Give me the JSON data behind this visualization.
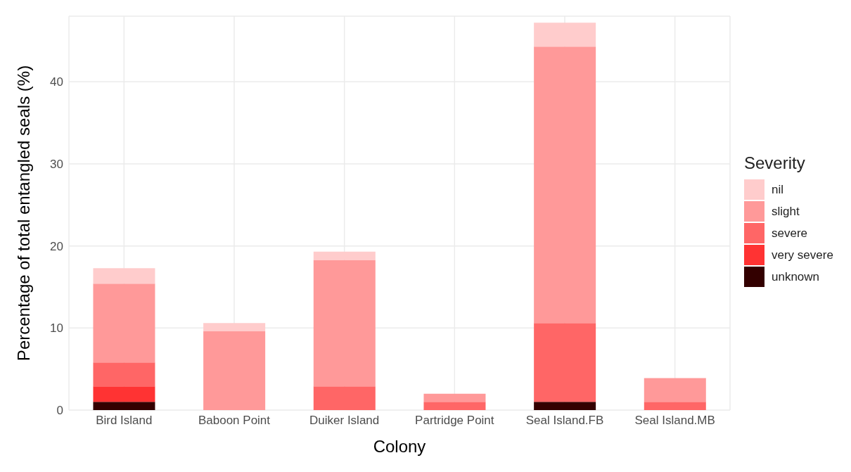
{
  "chart_data": {
    "type": "bar",
    "stacked": true,
    "xlabel": "Colony",
    "ylabel": "Percentage of total entangled seals (%)",
    "legend_title": "Severity",
    "legend": "right",
    "grid": true,
    "categories": [
      "Bird Island",
      "Baboon Point",
      "Duiker Island",
      "Partridge Point",
      "Seal Island.FB",
      "Seal Island.MB"
    ],
    "ylim": [
      0,
      48
    ],
    "yticks": [
      0,
      10,
      20,
      30,
      40
    ],
    "series": [
      {
        "name": "unknown",
        "color": "#330000",
        "values": [
          1.0,
          0,
          0,
          0,
          1.0,
          0
        ]
      },
      {
        "name": "very severe",
        "color": "#ff3333",
        "values": [
          1.9,
          0,
          0,
          0,
          0,
          0
        ]
      },
      {
        "name": "severe",
        "color": "#ff6666",
        "values": [
          2.9,
          0,
          2.9,
          1.0,
          9.6,
          1.0
        ]
      },
      {
        "name": "slight",
        "color": "#ff9999",
        "values": [
          9.6,
          9.6,
          15.4,
          1.0,
          33.7,
          2.9
        ]
      },
      {
        "name": "nil",
        "color": "#ffcccc",
        "values": [
          1.9,
          1.0,
          1.0,
          0,
          2.9,
          0
        ]
      }
    ]
  }
}
